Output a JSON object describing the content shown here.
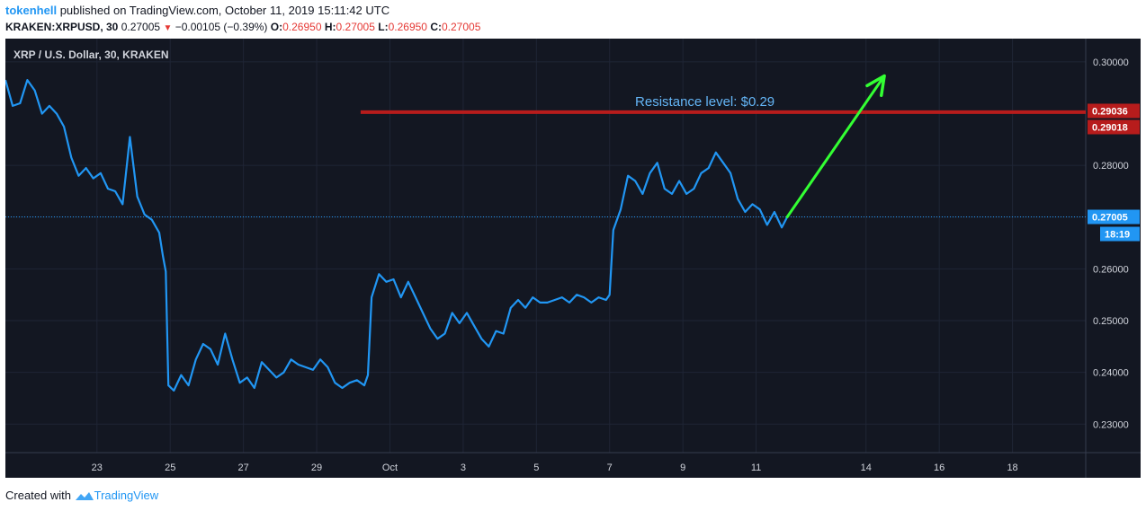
{
  "header": {
    "author": "tokenhell",
    "published_text": "published on TradingView.com, October 11, 2019 15:11:42 UTC",
    "symbol": "KRAKEN:XRPUSD, 30",
    "last": "0.27005",
    "change": "−0.00105 (−0.39%)",
    "o_label": "O:",
    "o_value": "0.26950",
    "h_label": "H:",
    "h_value": "0.27005",
    "l_label": "L:",
    "l_value": "0.26950",
    "c_label": "C:",
    "c_value": "0.27005"
  },
  "footer": {
    "created_with": "Created with",
    "brand": "TradingView"
  },
  "colors": {
    "background": "#131722",
    "grid": "#1f2535",
    "price_line": "#2196f3",
    "resistance": "#b71c1c",
    "arrow": "#33ff33",
    "axis_text": "#d1d4dc"
  },
  "chart_data": {
    "type": "line",
    "title": "XRP / U.S. Dollar, 30, KRAKEN",
    "xlabel": "",
    "ylabel": "",
    "x_tick_labels": [
      "23",
      "25",
      "27",
      "29",
      "Oct",
      "3",
      "5",
      "7",
      "9",
      "11",
      "14",
      "16",
      "18"
    ],
    "x_tick_days": [
      23,
      25,
      27,
      29,
      31,
      33,
      35,
      37,
      39,
      41,
      44,
      46,
      48
    ],
    "xlim_days": [
      20.5,
      50
    ],
    "ylim": [
      0.2245,
      0.3045
    ],
    "y_ticks": [
      "0.23000",
      "0.24000",
      "0.25000",
      "0.26000",
      "0.27000",
      "0.28000",
      "0.30000"
    ],
    "grid": true,
    "series": [
      {
        "x_days": [
          20.5,
          20.7,
          20.9,
          21.1,
          21.3,
          21.5,
          21.7,
          21.9,
          22.1,
          22.3,
          22.5,
          22.7,
          22.9,
          23.1,
          23.3,
          23.5,
          23.7,
          23.9,
          24.1,
          24.3,
          24.5,
          24.7,
          24.8,
          24.88,
          24.95,
          25.1,
          25.3,
          25.5,
          25.7,
          25.9,
          26.1,
          26.3,
          26.5,
          26.7,
          26.9,
          27.1,
          27.3,
          27.5,
          27.7,
          27.9,
          28.1,
          28.3,
          28.5,
          28.7,
          28.9,
          29.1,
          29.3,
          29.5,
          29.7,
          29.9,
          30.1,
          30.3,
          30.4,
          30.5,
          30.7,
          30.9,
          31.1,
          31.3,
          31.5,
          31.7,
          31.9,
          32.1,
          32.3,
          32.5,
          32.7,
          32.9,
          33.1,
          33.3,
          33.5,
          33.7,
          33.9,
          34.1,
          34.3,
          34.5,
          34.7,
          34.9,
          35.1,
          35.3,
          35.5,
          35.7,
          35.9,
          36.1,
          36.3,
          36.5,
          36.7,
          36.9,
          37.0,
          37.1,
          37.3,
          37.5,
          37.7,
          37.9,
          38.1,
          38.3,
          38.5,
          38.7,
          38.9,
          39.1,
          39.3,
          39.5,
          39.7,
          39.9,
          40.1,
          40.3,
          40.5,
          40.7,
          40.9,
          41.1,
          41.3,
          41.5,
          41.7,
          41.85
        ],
        "values": [
          0.2965,
          0.2915,
          0.292,
          0.2965,
          0.2945,
          0.29,
          0.2915,
          0.29,
          0.2875,
          0.2815,
          0.278,
          0.2795,
          0.2775,
          0.2785,
          0.2755,
          0.275,
          0.2725,
          0.2855,
          0.274,
          0.2705,
          0.2695,
          0.267,
          0.2625,
          0.2595,
          0.2375,
          0.2365,
          0.2395,
          0.2375,
          0.2425,
          0.2455,
          0.2445,
          0.2415,
          0.2475,
          0.2425,
          0.238,
          0.239,
          0.237,
          0.242,
          0.2405,
          0.239,
          0.24,
          0.2425,
          0.2415,
          0.241,
          0.2405,
          0.2425,
          0.241,
          0.238,
          0.237,
          0.238,
          0.2385,
          0.2375,
          0.2395,
          0.2545,
          0.259,
          0.2575,
          0.258,
          0.2545,
          0.2575,
          0.2545,
          0.2515,
          0.2485,
          0.2465,
          0.2475,
          0.2515,
          0.2495,
          0.2515,
          0.249,
          0.2465,
          0.245,
          0.248,
          0.2475,
          0.2525,
          0.254,
          0.2525,
          0.2545,
          0.2535,
          0.2535,
          0.254,
          0.2545,
          0.2535,
          0.255,
          0.2545,
          0.2535,
          0.2545,
          0.254,
          0.255,
          0.2675,
          0.2715,
          0.278,
          0.277,
          0.2745,
          0.2785,
          0.2805,
          0.2755,
          0.2745,
          0.277,
          0.2745,
          0.2755,
          0.2785,
          0.2795,
          0.2825,
          0.2805,
          0.2785,
          0.2735,
          0.271,
          0.2725,
          0.2715,
          0.2685,
          0.271,
          0.268,
          0.27005
        ]
      }
    ],
    "annotations": [
      {
        "type": "horizontal_line",
        "y": 0.2903,
        "label": "Resistance level: $0.29",
        "x_start_day": 30.2
      },
      {
        "type": "arrow",
        "from": [
          41.85,
          0.27005
        ],
        "to": [
          44.5,
          0.2973
        ]
      }
    ],
    "price_labels": [
      {
        "text": "0.29036",
        "y": 0.29036
      },
      {
        "text": "0.29018",
        "y": 0.29018
      },
      {
        "text": "0.27005",
        "y": 0.27005
      },
      {
        "text": "18:19",
        "below_of": "0.27005"
      }
    ]
  }
}
